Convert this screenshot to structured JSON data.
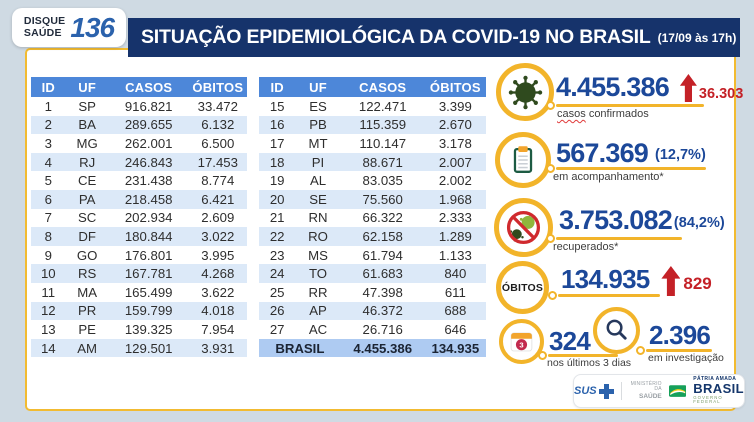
{
  "header": {
    "hotline": {
      "line1": "DISQUE",
      "line2": "SAÚDE",
      "number": "136"
    },
    "title": "SITUAÇÃO EPIDEMIOLÓGICA DA COVID-19 NO BRASIL",
    "title_time": "(17/09 às 17h)"
  },
  "table": {
    "headers": [
      "ID",
      "UF",
      "CASOS",
      "ÓBITOS"
    ],
    "left_rows": [
      [
        "1",
        "SP",
        "916.821",
        "33.472"
      ],
      [
        "2",
        "BA",
        "289.655",
        "6.132"
      ],
      [
        "3",
        "MG",
        "262.001",
        "6.500"
      ],
      [
        "4",
        "RJ",
        "246.843",
        "17.453"
      ],
      [
        "5",
        "CE",
        "231.438",
        "8.774"
      ],
      [
        "6",
        "PA",
        "218.458",
        "6.421"
      ],
      [
        "7",
        "SC",
        "202.934",
        "2.609"
      ],
      [
        "8",
        "DF",
        "180.844",
        "3.022"
      ],
      [
        "9",
        "GO",
        "176.801",
        "3.995"
      ],
      [
        "10",
        "RS",
        "167.781",
        "4.268"
      ],
      [
        "11",
        "MA",
        "165.499",
        "3.622"
      ],
      [
        "12",
        "PR",
        "159.799",
        "4.018"
      ],
      [
        "13",
        "PE",
        "139.325",
        "7.954"
      ],
      [
        "14",
        "AM",
        "129.501",
        "3.931"
      ]
    ],
    "right_rows": [
      [
        "15",
        "ES",
        "122.471",
        "3.399"
      ],
      [
        "16",
        "PB",
        "115.359",
        "2.670"
      ],
      [
        "17",
        "MT",
        "110.147",
        "3.178"
      ],
      [
        "18",
        "PI",
        "88.671",
        "2.007"
      ],
      [
        "19",
        "AL",
        "83.035",
        "2.002"
      ],
      [
        "20",
        "SE",
        "75.560",
        "1.968"
      ],
      [
        "21",
        "RN",
        "66.322",
        "2.333"
      ],
      [
        "22",
        "RO",
        "62.158",
        "1.289"
      ],
      [
        "23",
        "MS",
        "61.794",
        "1.133"
      ],
      [
        "24",
        "TO",
        "61.683",
        "840"
      ],
      [
        "25",
        "RR",
        "47.398",
        "611"
      ],
      [
        "26",
        "AP",
        "46.372",
        "688"
      ],
      [
        "27",
        "AC",
        "26.716",
        "646"
      ]
    ],
    "total": {
      "label": "BRASIL",
      "casos": "4.455.386",
      "obitos": "134.935"
    }
  },
  "stats": {
    "confirmed": {
      "icon": "virus-icon",
      "value": "4.455.386",
      "delta": "36.303",
      "label_a": "casos",
      "label_b": "confirmados"
    },
    "monitoring": {
      "icon": "clipboard-icon",
      "value": "567.369",
      "percent": "(12,7%)",
      "label": "em acompanhamento*"
    },
    "recovered": {
      "icon": "no-virus-icon",
      "value": "3.753.082",
      "percent": "(84,2%)",
      "label": "recuperados*"
    },
    "deaths": {
      "icon": "obitos-badge",
      "badge": "ÓBITOS",
      "value": "134.935",
      "delta": "829"
    },
    "last3days": {
      "icon": "calendar-icon",
      "value": "324",
      "label": "nos últimos 3 dias"
    },
    "investigation": {
      "icon": "magnifier-icon",
      "value": "2.396",
      "label": "em investigação"
    }
  },
  "footer": {
    "sus_label": "SUS",
    "ministry_line1": "MINISTÉRIO DA",
    "ministry_line2": "SAÚDE",
    "patria_top": "PÁTRIA AMADA",
    "patria_main": "BRASIL",
    "patria_sub": "GOVERNO FEDERAL"
  },
  "colors": {
    "accent_yellow": "#F2B42A",
    "navy_title": "#16336B",
    "number_blue": "#1C4899",
    "alert_red": "#C42127",
    "table_header_blue": "#4D87D9",
    "row_alt_blue": "#DCE9F8",
    "total_row_blue": "#AECBF2",
    "virus_green": "#2F4A1E"
  },
  "chart_data": {
    "type": "table",
    "title": "SITUAÇÃO EPIDEMIOLÓGICA DA COVID-19 NO BRASIL (17/09 às 17h)",
    "columns": [
      "ID",
      "UF",
      "CASOS",
      "ÓBITOS"
    ],
    "rows": [
      [
        1,
        "SP",
        916821,
        33472
      ],
      [
        2,
        "BA",
        289655,
        6132
      ],
      [
        3,
        "MG",
        262001,
        6500
      ],
      [
        4,
        "RJ",
        246843,
        17453
      ],
      [
        5,
        "CE",
        231438,
        8774
      ],
      [
        6,
        "PA",
        218458,
        6421
      ],
      [
        7,
        "SC",
        202934,
        2609
      ],
      [
        8,
        "DF",
        180844,
        3022
      ],
      [
        9,
        "GO",
        176801,
        3995
      ],
      [
        10,
        "RS",
        167781,
        4268
      ],
      [
        11,
        "MA",
        165499,
        3622
      ],
      [
        12,
        "PR",
        159799,
        4018
      ],
      [
        13,
        "PE",
        139325,
        7954
      ],
      [
        14,
        "AM",
        129501,
        3931
      ],
      [
        15,
        "ES",
        122471,
        3399
      ],
      [
        16,
        "PB",
        115359,
        2670
      ],
      [
        17,
        "MT",
        110147,
        3178
      ],
      [
        18,
        "PI",
        88671,
        2007
      ],
      [
        19,
        "AL",
        83035,
        2002
      ],
      [
        20,
        "SE",
        75560,
        1968
      ],
      [
        21,
        "RN",
        66322,
        2333
      ],
      [
        22,
        "RO",
        62158,
        1289
      ],
      [
        23,
        "MS",
        61794,
        1133
      ],
      [
        24,
        "TO",
        61683,
        840
      ],
      [
        25,
        "RR",
        47398,
        611
      ],
      [
        26,
        "AP",
        46372,
        688
      ],
      [
        27,
        "AC",
        26716,
        646
      ]
    ],
    "total": {
      "UF": "BRASIL",
      "CASOS": 4455386,
      "ÓBITOS": 134935
    },
    "summary": {
      "casos_confirmados": 4455386,
      "novos_casos": 36303,
      "em_acompanhamento": 567369,
      "em_acompanhamento_pct": "12,7%",
      "recuperados": 3753082,
      "recuperados_pct": "84,2%",
      "obitos": 134935,
      "novos_obitos": 829,
      "obitos_ultimos_3_dias": 324,
      "obitos_em_investigacao": 2396
    }
  }
}
